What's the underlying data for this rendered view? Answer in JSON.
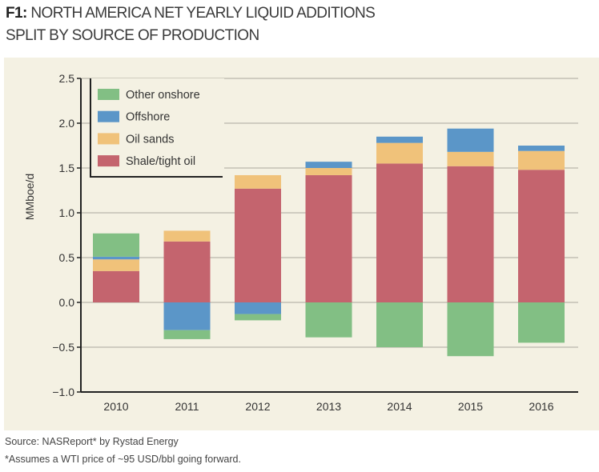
{
  "title": {
    "prefix": "F1:",
    "line1": "NORTH AMERICA NET YEARLY LIQUID ADDITIONS",
    "line2": "SPLIT BY SOURCE OF PRODUCTION"
  },
  "notes": {
    "source": "Source: NASReport* by Rystad Energy",
    "footnote": "*Assumes a WTI price of ~95 USD/bbl going forward."
  },
  "chart_data": {
    "type": "bar",
    "stacked": true,
    "ylabel": "MMboe/d",
    "xlabel": "",
    "ylim": [
      -1.0,
      2.5
    ],
    "yticks": [
      "-1.0",
      "-0.5",
      "0.0",
      "0.5",
      "1.0",
      "1.5",
      "2.0",
      "2.5"
    ],
    "grid": true,
    "legend": "top-left",
    "categories": [
      "2010",
      "2011",
      "2012",
      "2013",
      "2014",
      "2015",
      "2016"
    ],
    "series": [
      {
        "name": "Shale/tight oil",
        "color": "#c4646e",
        "values": [
          0.35,
          0.68,
          1.27,
          1.42,
          1.55,
          1.52,
          1.48
        ]
      },
      {
        "name": "Oil sands",
        "color": "#f0c27a",
        "values": [
          0.13,
          0.12,
          0.15,
          0.08,
          0.23,
          0.16,
          0.21
        ]
      },
      {
        "name": "Offshore",
        "color": "#5b96c8",
        "values": [
          0.03,
          -0.31,
          -0.13,
          0.07,
          0.07,
          0.26,
          0.06
        ]
      },
      {
        "name": "Other onshore",
        "color": "#82bf84",
        "values": [
          0.26,
          -0.1,
          -0.07,
          -0.39,
          -0.5,
          -0.6,
          -0.45
        ]
      }
    ],
    "legend_order": [
      "Other onshore",
      "Offshore",
      "Oil sands",
      "Shale/tight oil"
    ]
  }
}
